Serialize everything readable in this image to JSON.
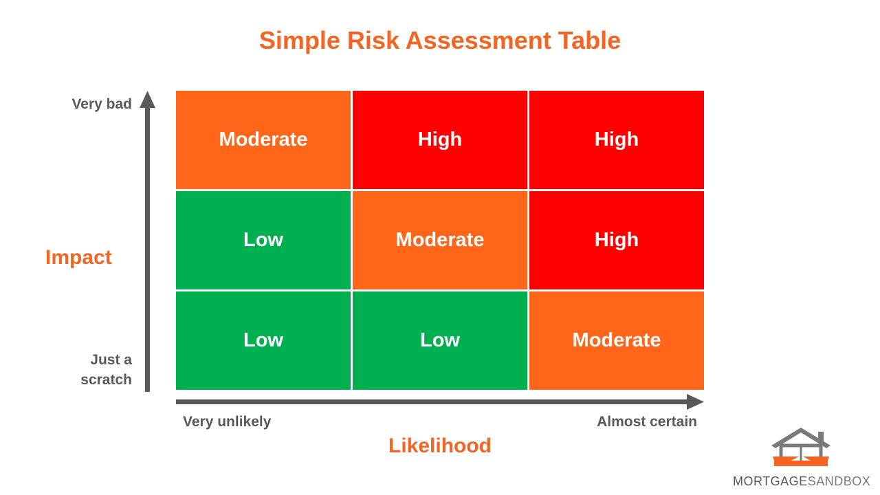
{
  "title": "Simple Risk Assessment Table",
  "y_axis": {
    "title": "Impact",
    "top_label": "Very bad",
    "bottom_label": "Just a scratch"
  },
  "x_axis": {
    "title": "Likelihood",
    "left_label": "Very unlikely",
    "right_label": "Almost certain"
  },
  "colors": {
    "Moderate": "#ff661a",
    "High": "#ff0000",
    "Low": "#00b050",
    "accent": "#f26522",
    "axis": "#595959"
  },
  "matrix": [
    [
      "Moderate",
      "High",
      "High"
    ],
    [
      "Low",
      "Moderate",
      "High"
    ],
    [
      "Low",
      "Low",
      "Moderate"
    ]
  ],
  "logo": {
    "word1": "MORTGAGE",
    "word2": "SANDBOX"
  }
}
